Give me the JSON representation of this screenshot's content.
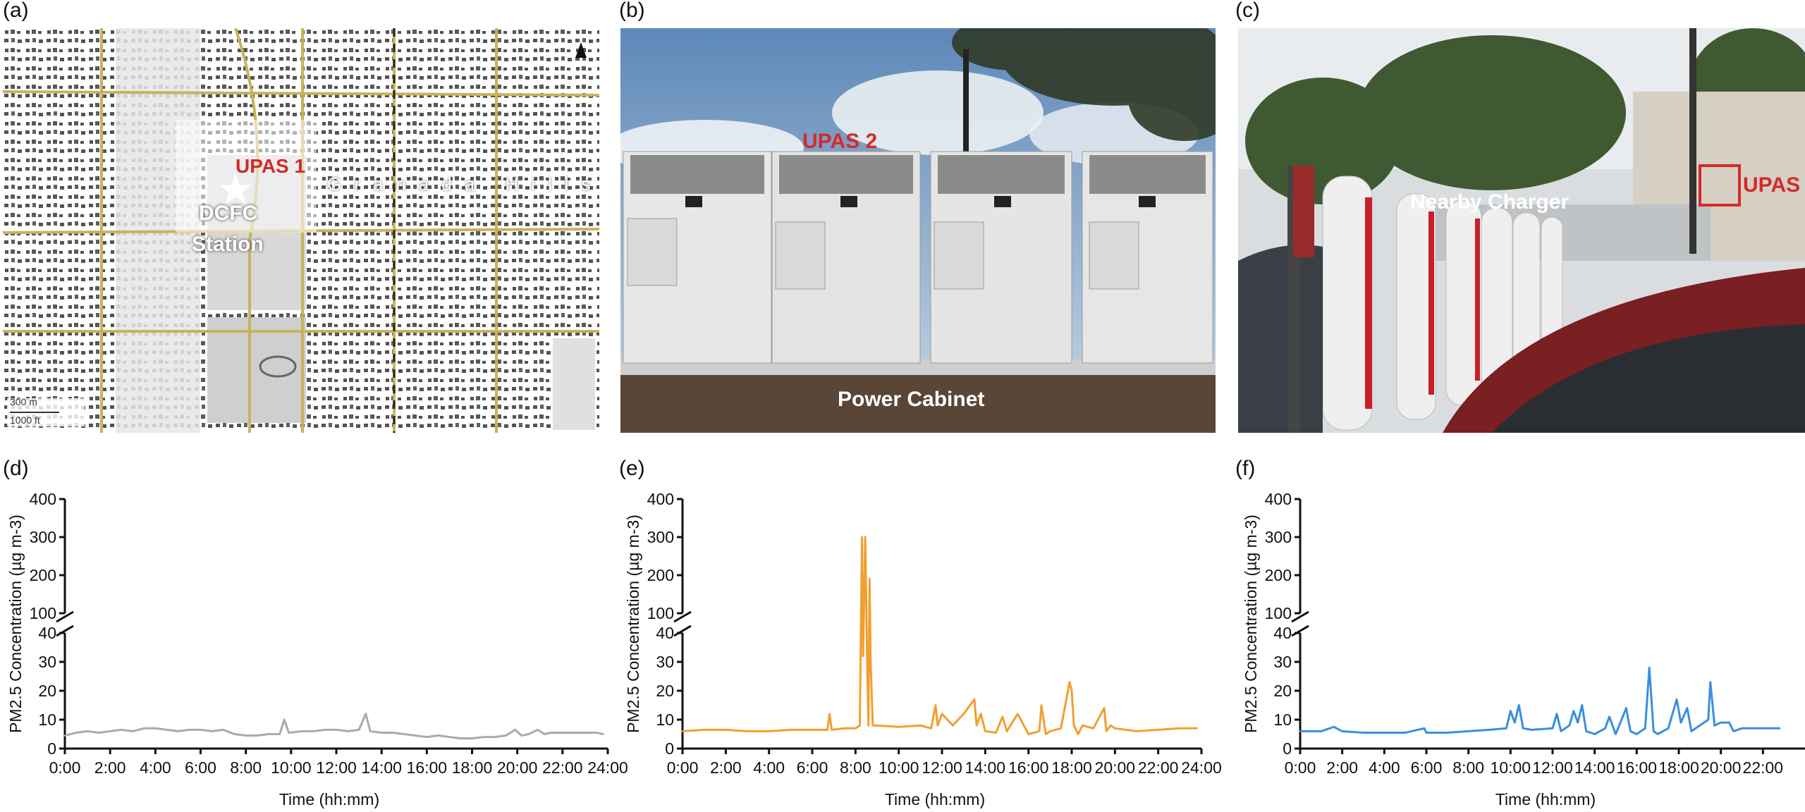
{
  "panels": {
    "a": {
      "label": "(a)",
      "site_label": "UPAS 1",
      "station_line1": "DCFC",
      "station_line2": "Station",
      "street": "Granada Hills",
      "scale_m": "300 m",
      "scale_ft": "1000 ft"
    },
    "b": {
      "label": "(b)",
      "site_label": "UPAS 2",
      "caption": "Power Cabinet"
    },
    "c": {
      "label": "(c)",
      "caption": "Nearby Charger",
      "site_label": "UPAS"
    },
    "d": {
      "label": "(d)"
    },
    "e": {
      "label": "(e)"
    },
    "f": {
      "label": "(f)"
    }
  },
  "colors": {
    "series_d": "#aaaaaa",
    "series_e": "#f0a030",
    "series_f": "#3a8fdc",
    "accent_red": "#d42a2a"
  },
  "chart_data": [
    {
      "panel": "d",
      "type": "line",
      "xlabel": "Time (hh:mm)",
      "ylabel": "PM2.5 Concentration (µg m-3)",
      "x_ticks": [
        "0:00",
        "2:00",
        "4:00",
        "6:00",
        "8:00",
        "10:00",
        "12:00",
        "14:00",
        "16:00",
        "18:00",
        "20:00",
        "22:00",
        "24:00"
      ],
      "y_ticks_lower": [
        0,
        10,
        20,
        30,
        40
      ],
      "y_ticks_upper": [
        100,
        200,
        300,
        400
      ],
      "axis_break": [
        40,
        100
      ],
      "xlim": [
        0,
        24
      ],
      "series": [
        {
          "x": [
            0,
            0.5,
            1,
            1.5,
            2,
            2.5,
            3,
            3.5,
            4,
            4.5,
            5,
            5.5,
            6,
            6.5,
            7,
            7.5,
            8,
            8.5,
            9,
            9.5,
            9.7,
            9.9,
            10.5,
            11,
            11.5,
            12,
            12.5,
            13,
            13.3,
            13.5,
            14,
            14.5,
            15,
            15.5,
            16,
            16.5,
            17,
            17.5,
            18,
            18.5,
            19,
            19.5,
            19.9,
            20.2,
            20.5,
            20.9,
            21.2,
            21.5,
            22,
            22.5,
            23,
            23.5,
            23.8
          ],
          "y": [
            4.5,
            5.5,
            6,
            5.5,
            6,
            6.5,
            6,
            7,
            7,
            6.5,
            6,
            6.5,
            6.5,
            6,
            6.5,
            5,
            4.5,
            4.5,
            5,
            5,
            10,
            5.5,
            6,
            6,
            6.5,
            6.5,
            6,
            6.5,
            12,
            6,
            5.5,
            5.5,
            5,
            4.5,
            4,
            4.5,
            4,
            3.5,
            3.5,
            4,
            4,
            4.5,
            6.5,
            4.5,
            5,
            6.5,
            5,
            5.5,
            5.5,
            5.5,
            5.5,
            5.5,
            5
          ]
        }
      ]
    },
    {
      "panel": "e",
      "type": "line",
      "xlabel": "Time (hh:mm)",
      "ylabel": "PM2.5 Concentration (µg m-3)",
      "x_ticks": [
        "0:00",
        "2:00",
        "4:00",
        "6:00",
        "8:00",
        "10:00",
        "12:00",
        "14:00",
        "16:00",
        "18:00",
        "20:00",
        "22:00",
        "24:00"
      ],
      "y_ticks_lower": [
        0,
        10,
        20,
        30,
        40
      ],
      "y_ticks_upper": [
        100,
        200,
        300,
        400
      ],
      "axis_break": [
        40,
        100
      ],
      "xlim": [
        0,
        24
      ],
      "series": [
        {
          "x": [
            0,
            1,
            2,
            3,
            4,
            5,
            6,
            6.7,
            6.8,
            6.9,
            7.5,
            8,
            8.2,
            8.3,
            8.35,
            8.45,
            8.55,
            8.6,
            8.65,
            8.7,
            8.8,
            9,
            10,
            11,
            11.5,
            11.7,
            11.8,
            12,
            12.5,
            13,
            13.5,
            13.6,
            13.8,
            14,
            14.5,
            14.8,
            15,
            15.5,
            16,
            16.5,
            16.6,
            16.8,
            17,
            17.5,
            17.9,
            18,
            18.1,
            18.3,
            18.5,
            19,
            19.5,
            19.6,
            19.8,
            20,
            21,
            22,
            23,
            23.8
          ],
          "y": [
            6,
            6.5,
            6.5,
            6,
            6,
            6.5,
            6.5,
            6.5,
            12,
            6.5,
            7,
            7,
            8,
            300,
            32,
            300,
            25,
            8,
            190,
            30,
            8,
            8,
            7.5,
            8,
            7,
            15,
            8,
            12,
            8,
            12,
            17,
            8,
            12,
            6,
            5.5,
            11,
            6,
            12,
            5,
            6,
            15,
            5,
            6,
            7,
            23,
            20,
            8,
            5,
            8,
            7,
            14,
            6,
            8,
            7,
            6,
            6.5,
            7,
            7
          ]
        }
      ]
    },
    {
      "panel": "f",
      "type": "line",
      "xlabel": "Time (hh:mm)",
      "ylabel": "PM2.5 Concentration (µg m-3)",
      "x_ticks": [
        "0:00",
        "2:00",
        "4:00",
        "6:00",
        "8:00",
        "10:00",
        "12:00",
        "14:00",
        "16:00",
        "18:00",
        "20:00",
        "22:00"
      ],
      "y_ticks_lower": [
        0,
        10,
        20,
        30,
        40
      ],
      "y_ticks_upper": [
        100,
        200,
        300,
        400
      ],
      "axis_break": [
        40,
        100
      ],
      "xlim": [
        0,
        24
      ],
      "series": [
        {
          "x": [
            0,
            1,
            1.6,
            2,
            3,
            4,
            5,
            5.9,
            6,
            7,
            8,
            9,
            9.8,
            10,
            10.2,
            10.4,
            10.6,
            11,
            12,
            12.2,
            12.4,
            12.8,
            13,
            13.2,
            13.4,
            13.6,
            14,
            14.5,
            14.7,
            15,
            15.5,
            15.7,
            16,
            16.4,
            16.6,
            16.8,
            17,
            17.5,
            17.9,
            18.1,
            18.4,
            18.6,
            19,
            19.4,
            19.5,
            19.7,
            20,
            20.4,
            20.6,
            21,
            22,
            22.8
          ],
          "y": [
            6,
            6,
            7.5,
            6,
            5.5,
            5.5,
            5.5,
            7,
            5.5,
            5.5,
            6,
            6.5,
            7,
            13,
            9,
            15,
            7,
            6.5,
            7,
            12,
            6,
            8,
            13,
            9,
            15,
            6,
            5,
            7,
            11,
            5,
            14,
            6,
            5,
            7,
            28,
            6,
            5,
            7,
            17,
            9,
            14,
            6,
            8,
            10,
            23,
            8,
            9,
            9,
            6,
            7,
            7,
            7
          ]
        }
      ]
    }
  ]
}
